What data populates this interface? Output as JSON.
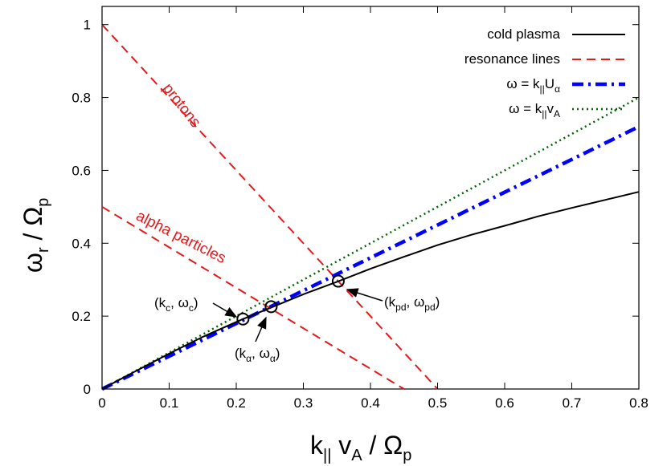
{
  "chart_data": {
    "type": "line",
    "xlabel": "k|| vA / Ωp",
    "ylabel": "ωr / Ωp",
    "xlim": [
      0,
      0.8
    ],
    "ylim": [
      0,
      1.05
    ],
    "xticks": [
      "0",
      "0.1",
      "0.2",
      "0.3",
      "0.4",
      "0.5",
      "0.6",
      "0.7",
      "0.8"
    ],
    "yticks": [
      "0",
      "0.2",
      "0.4",
      "0.6",
      "0.8",
      "1"
    ],
    "legend_position": "top-right",
    "series": [
      {
        "name": "cold plasma",
        "style": "solid",
        "color": "#000000",
        "x": [
          0,
          0.05,
          0.1,
          0.15,
          0.2,
          0.21,
          0.25,
          0.3,
          0.35,
          0.4,
          0.45,
          0.5,
          0.55,
          0.6,
          0.65,
          0.7,
          0.75,
          0.8
        ],
        "y": [
          0,
          0.049,
          0.097,
          0.143,
          0.184,
          0.192,
          0.222,
          0.26,
          0.294,
          0.33,
          0.363,
          0.395,
          0.423,
          0.448,
          0.474,
          0.497,
          0.519,
          0.541
        ]
      },
      {
        "name": "resonance lines",
        "style": "dashed",
        "color": "#e41a1c",
        "segments": [
          {
            "label": "protons",
            "x": [
              0,
              0.5
            ],
            "y": [
              1,
              0
            ]
          },
          {
            "label": "alpha particles",
            "x": [
              0,
              0.45
            ],
            "y": [
              0.5,
              0
            ]
          }
        ]
      },
      {
        "name": "ω = k||Uα",
        "style": "dash-dot",
        "color": "#0000ff",
        "x": [
          0,
          0.8
        ],
        "y": [
          0,
          0.72
        ]
      },
      {
        "name": "ω = k||vA",
        "style": "dotted",
        "color": "#006400",
        "x": [
          0,
          0.8
        ],
        "y": [
          0,
          0.8
        ]
      }
    ],
    "markers": [
      {
        "label_main": "k",
        "label_sub": "c",
        "label_main2": "ω",
        "label_sub2": "c",
        "x": 0.21,
        "y": 0.192
      },
      {
        "label_main": "k",
        "label_sub": "α",
        "label_main2": "ω",
        "label_sub2": "α",
        "x": 0.252,
        "y": 0.226
      },
      {
        "label_main": "k",
        "label_sub": "pd",
        "label_main2": "ω",
        "label_sub2": "pd",
        "x": 0.352,
        "y": 0.296
      }
    ],
    "annotations": {
      "protons": "protons",
      "alpha": "alpha particles"
    }
  },
  "legend": [
    {
      "text": "cold plasma",
      "key": "solid",
      "color": "#000000"
    },
    {
      "text": "resonance lines",
      "key": "dashed",
      "color": "#e41a1c"
    },
    {
      "text_main": "ω = k",
      "text_sub1": "||",
      "text_mid": "U",
      "text_sub2": "α",
      "key": "dashdot",
      "color": "#0000ff"
    },
    {
      "text_main": "ω = k",
      "text_sub1": "||",
      "text_mid": "v",
      "text_sub2": "A",
      "key": "dotted",
      "color": "#006400"
    }
  ],
  "axis_labels": {
    "x_main1": "k",
    "x_sub1": "||",
    "x_main2": " v",
    "x_sub2": "A",
    "x_main3": " / Ω",
    "x_sub3": "p",
    "y_main1": "ω",
    "y_sub1": "r",
    "y_main2": " / Ω",
    "y_sub2": "p"
  }
}
